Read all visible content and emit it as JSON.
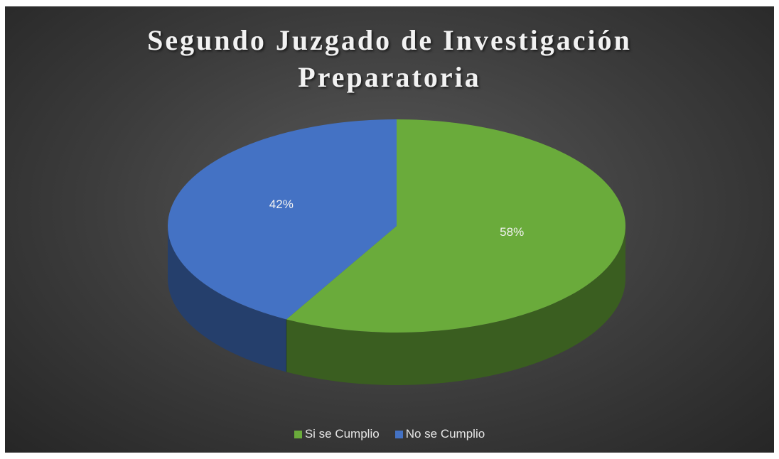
{
  "chart_data": {
    "type": "pie",
    "title": "Segundo Juzgado de Investigación Preparatoria",
    "categories": [
      "Si se Cumplio",
      "No se Cumplio"
    ],
    "values": [
      58,
      42
    ],
    "value_labels": [
      "58%",
      "42%"
    ],
    "colors": [
      "#6aab3b",
      "#4472c4"
    ],
    "legend": "bottom"
  }
}
